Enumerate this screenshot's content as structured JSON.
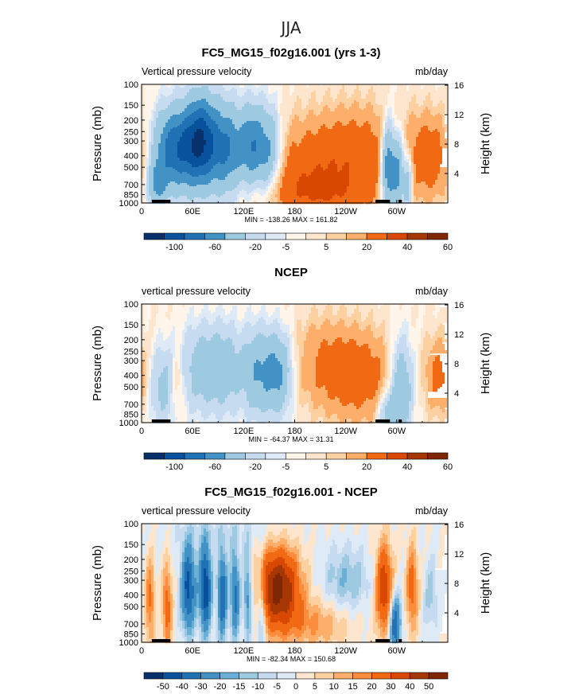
{
  "figure": {
    "super_title": "JJA",
    "colors": {
      "blues": [
        "#08306b",
        "#08519c",
        "#2171b5",
        "#4292c6",
        "#6baed6",
        "#9ecae1",
        "#c6dbef"
      ],
      "whites": [
        "#deebf7",
        "#fff5eb"
      ],
      "reds": [
        "#fee6ce",
        "#fdd0a2",
        "#fdae6b",
        "#fd8d3c",
        "#f16913",
        "#d94801",
        "#a63603",
        "#7f2704"
      ]
    }
  },
  "chart_data": [
    {
      "type": "heatmap",
      "title": "FC5_MG15_f02g16.001 (yrs 1-3)",
      "left_label": "Vertical pressure velocity",
      "right_label": "mb/day",
      "ylabel": "Pressure (mb)",
      "y2label": "Height (km)",
      "x_ticks": [
        "0",
        "60E",
        "120E",
        "180",
        "120W",
        "60W"
      ],
      "x_tick_lon": [
        0,
        60,
        120,
        180,
        240,
        300
      ],
      "xlim": [
        0,
        360
      ],
      "y_ticks": [
        "100",
        "150",
        "200",
        "250",
        "300",
        "400",
        "500",
        "700",
        "850",
        "1000"
      ],
      "y_tick_p": [
        100,
        150,
        200,
        250,
        300,
        400,
        500,
        700,
        850,
        1000
      ],
      "ylim": [
        1000,
        100
      ],
      "y2_ticks": [
        "16",
        "12",
        "8",
        "4"
      ],
      "y2_tick_km": [
        16,
        12,
        8,
        4
      ],
      "stats": "MIN = -138.26   MAX = 161.82",
      "colorbar_labels": [
        "-100",
        "-60",
        "-20",
        "-5",
        "5",
        "20",
        "40",
        "60"
      ],
      "colorbar_levels": [
        -120,
        -100,
        -80,
        -60,
        -40,
        -20,
        -10,
        -5,
        0,
        5,
        10,
        20,
        40,
        60,
        80,
        100
      ],
      "fields": [
        {
          "lon": 40,
          "p": 350,
          "wx": 18,
          "wy": 0.55,
          "amp": -75
        },
        {
          "lon": 70,
          "p": 300,
          "wx": 13,
          "wy": 0.6,
          "amp": -85
        },
        {
          "lon": 100,
          "p": 350,
          "wx": 14,
          "wy": 0.6,
          "amp": -60
        },
        {
          "lon": 130,
          "p": 330,
          "wx": 10,
          "wy": 0.55,
          "amp": -55
        },
        {
          "lon": 150,
          "p": 380,
          "wx": 10,
          "wy": 0.6,
          "amp": -45
        },
        {
          "lon": 18,
          "p": 700,
          "wx": 8,
          "wy": 0.3,
          "amp": -40
        },
        {
          "lon": 225,
          "p": 500,
          "wx": 55,
          "wy": 0.65,
          "amp": 35
        },
        {
          "lon": 200,
          "p": 820,
          "wx": 40,
          "wy": 0.3,
          "amp": 22
        },
        {
          "lon": 340,
          "p": 400,
          "wx": 18,
          "wy": 0.55,
          "amp": 28
        },
        {
          "lon": 290,
          "p": 500,
          "wx": 6,
          "wy": 0.6,
          "amp": -70
        },
        {
          "lon": 302,
          "p": 550,
          "wx": 5,
          "wy": 0.55,
          "amp": -50
        },
        {
          "lon": 313,
          "p": 650,
          "wx": 4,
          "wy": 0.45,
          "amp": -35
        },
        {
          "lon": 265,
          "p": 250,
          "wx": 35,
          "wy": 0.5,
          "amp": 8
        }
      ]
    },
    {
      "type": "heatmap",
      "title": "NCEP",
      "left_label": "vertical pressure velocity",
      "right_label": "mb/day",
      "ylabel": "Pressure (mb)",
      "y2label": "Height (km)",
      "x_ticks": [
        "0",
        "60E",
        "120E",
        "180",
        "120W",
        "60W"
      ],
      "x_tick_lon": [
        0,
        60,
        120,
        180,
        240,
        300
      ],
      "xlim": [
        0,
        360
      ],
      "y_ticks": [
        "100",
        "150",
        "200",
        "250",
        "300",
        "400",
        "500",
        "700",
        "850",
        "1000"
      ],
      "y_tick_p": [
        100,
        150,
        200,
        250,
        300,
        400,
        500,
        700,
        850,
        1000
      ],
      "ylim": [
        1000,
        100
      ],
      "y2_ticks": [
        "16",
        "12",
        "8",
        "4"
      ],
      "y2_tick_km": [
        16,
        12,
        8,
        4
      ],
      "stats": "MIN = -64.37   MAX =  31.31",
      "colorbar_labels": [
        "-100",
        "-60",
        "-20",
        "-5",
        "5",
        "20",
        "40",
        "60"
      ],
      "colorbar_levels": [
        -120,
        -100,
        -80,
        -60,
        -40,
        -20,
        -10,
        -5,
        0,
        5,
        10,
        20,
        40,
        60,
        80,
        100
      ],
      "fields": [
        {
          "lon": 25,
          "p": 500,
          "wx": 12,
          "wy": 0.55,
          "amp": -25
        },
        {
          "lon": 70,
          "p": 350,
          "wx": 18,
          "wy": 0.6,
          "amp": -28
        },
        {
          "lon": 100,
          "p": 350,
          "wx": 14,
          "wy": 0.6,
          "amp": -25
        },
        {
          "lon": 135,
          "p": 380,
          "wx": 12,
          "wy": 0.6,
          "amp": -35
        },
        {
          "lon": 160,
          "p": 380,
          "wx": 12,
          "wy": 0.55,
          "amp": -45
        },
        {
          "lon": 42,
          "p": 450,
          "wx": 6,
          "wy": 0.45,
          "amp": 18
        },
        {
          "lon": 255,
          "p": 400,
          "wx": 30,
          "wy": 0.6,
          "amp": 30
        },
        {
          "lon": 210,
          "p": 300,
          "wx": 25,
          "wy": 0.6,
          "amp": 15
        },
        {
          "lon": 350,
          "p": 400,
          "wx": 12,
          "wy": 0.5,
          "amp": 25
        },
        {
          "lon": 305,
          "p": 500,
          "wx": 10,
          "wy": 0.65,
          "amp": -40
        },
        {
          "lon": 290,
          "p": 850,
          "wx": 8,
          "wy": 0.3,
          "amp": -30
        }
      ]
    },
    {
      "type": "heatmap",
      "title": "FC5_MG15_f02g16.001 - NCEP",
      "left_label": "vertical pressure velocity",
      "right_label": "mb/day",
      "ylabel": "Pressure (mb)",
      "y2label": "Height (km)",
      "x_ticks": [
        "0",
        "60E",
        "120E",
        "180",
        "120W",
        "60W"
      ],
      "x_tick_lon": [
        0,
        60,
        120,
        180,
        240,
        300
      ],
      "xlim": [
        0,
        360
      ],
      "y_ticks": [
        "100",
        "150",
        "200",
        "250",
        "300",
        "400",
        "500",
        "700",
        "850",
        "1000"
      ],
      "y_tick_p": [
        100,
        150,
        200,
        250,
        300,
        400,
        500,
        700,
        850,
        1000
      ],
      "ylim": [
        1000,
        100
      ],
      "y2_ticks": [
        "16",
        "12",
        "8",
        "4"
      ],
      "y2_tick_km": [
        16,
        12,
        8,
        4
      ],
      "stats": "MIN = -82.34   MAX = 150.68",
      "colorbar_labels": [
        "-50",
        "-40",
        "-30",
        "-20",
        "-15",
        "-10",
        "-5",
        "0",
        "5",
        "10",
        "15",
        "20",
        "30",
        "40",
        "50"
      ],
      "colorbar_levels": [
        -60,
        -50,
        -40,
        -30,
        -20,
        -15,
        -10,
        -5,
        0,
        5,
        10,
        15,
        20,
        30,
        40,
        50,
        60
      ],
      "fields": [
        {
          "lon": 10,
          "p": 450,
          "wx": 4,
          "wy": 0.6,
          "amp": 22
        },
        {
          "lon": 30,
          "p": 500,
          "wx": 4,
          "wy": 0.6,
          "amp": 25
        },
        {
          "lon": 55,
          "p": 350,
          "wx": 6,
          "wy": 0.6,
          "amp": -45
        },
        {
          "lon": 75,
          "p": 350,
          "wx": 5,
          "wy": 0.6,
          "amp": -50
        },
        {
          "lon": 95,
          "p": 400,
          "wx": 4,
          "wy": 0.6,
          "amp": -40
        },
        {
          "lon": 110,
          "p": 400,
          "wx": 4,
          "wy": 0.6,
          "amp": -35
        },
        {
          "lon": 125,
          "p": 400,
          "wx": 4,
          "wy": 0.6,
          "amp": -30
        },
        {
          "lon": 140,
          "p": 500,
          "wx": 4,
          "wy": 0.6,
          "amp": -25
        },
        {
          "lon": 160,
          "p": 350,
          "wx": 18,
          "wy": 0.55,
          "amp": 55
        },
        {
          "lon": 205,
          "p": 700,
          "wx": 28,
          "wy": 0.35,
          "amp": 15
        },
        {
          "lon": 240,
          "p": 300,
          "wx": 20,
          "wy": 0.45,
          "amp": -15
        },
        {
          "lon": 285,
          "p": 350,
          "wx": 7,
          "wy": 0.6,
          "amp": 40
        },
        {
          "lon": 298,
          "p": 700,
          "wx": 5,
          "wy": 0.4,
          "amp": -40
        },
        {
          "lon": 318,
          "p": 350,
          "wx": 5,
          "wy": 0.6,
          "amp": 25
        },
        {
          "lon": 340,
          "p": 400,
          "wx": 6,
          "wy": 0.5,
          "amp": -12
        },
        {
          "lon": 100,
          "p": 120,
          "wx": 50,
          "wy": 0.3,
          "amp": -6
        }
      ]
    }
  ]
}
